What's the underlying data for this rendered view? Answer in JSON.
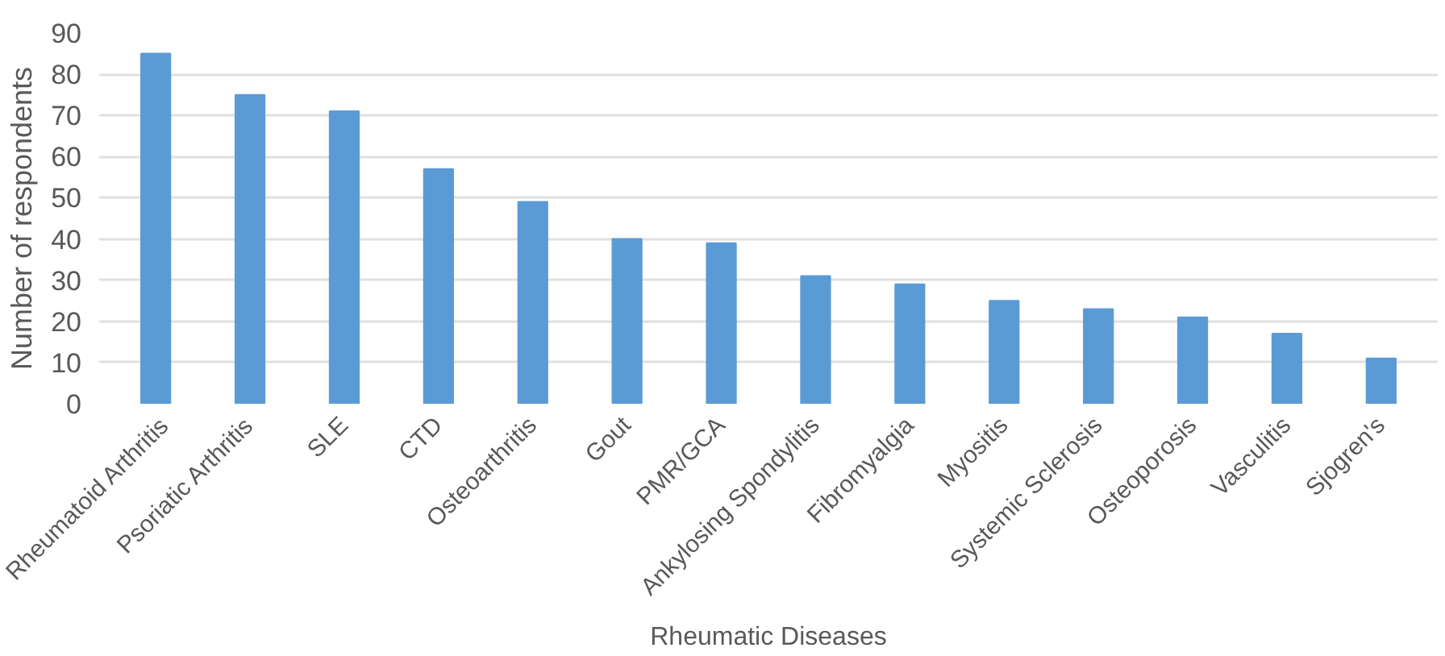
{
  "chart_data": {
    "type": "bar",
    "xlabel": "Rheumatic Diseases",
    "ylabel": "Number of respondents",
    "categories": [
      "Rheumatoid Arthritis",
      "Psoriatic Arthritis",
      "SLE",
      "CTD",
      "Osteoarthritis",
      "Gout",
      "PMR/GCA",
      "Ankylosing Spondylitis",
      "Fibromyalgia",
      "Myositis",
      "Systemic Sclerosis",
      "Osteoporosis",
      "Vasculitis",
      "Sjogren's"
    ],
    "values": [
      85,
      75,
      71,
      57,
      49,
      40,
      39,
      31,
      29,
      25,
      23,
      21,
      17,
      11
    ],
    "color": "#5b9bd5",
    "ylim": [
      0,
      90
    ],
    "yticks": [
      0,
      10,
      20,
      30,
      40,
      50,
      60,
      70,
      80,
      90
    ],
    "grid": "y"
  }
}
